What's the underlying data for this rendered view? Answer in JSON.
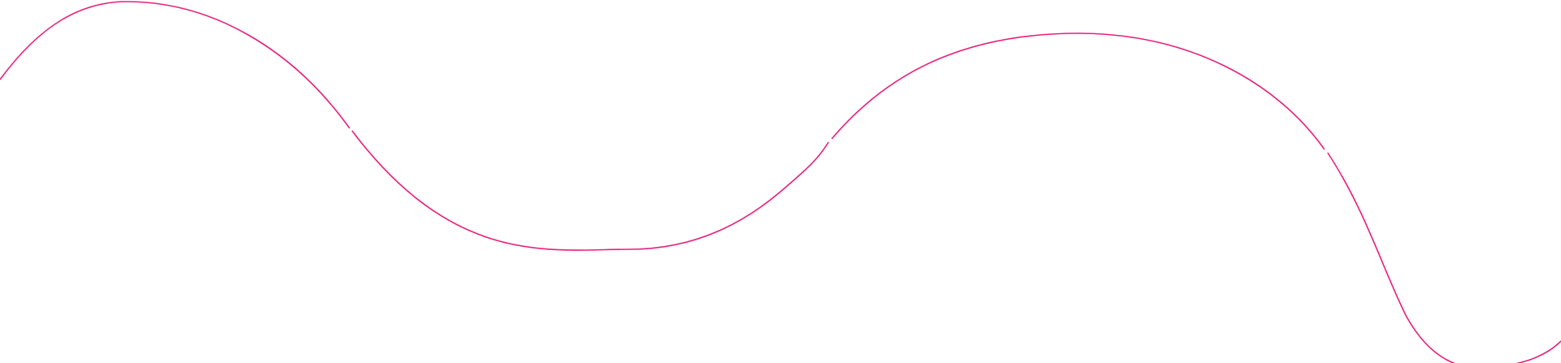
{
  "decoration": {
    "stroke_color": "#e91e7b",
    "background_color": "#ffffff"
  }
}
